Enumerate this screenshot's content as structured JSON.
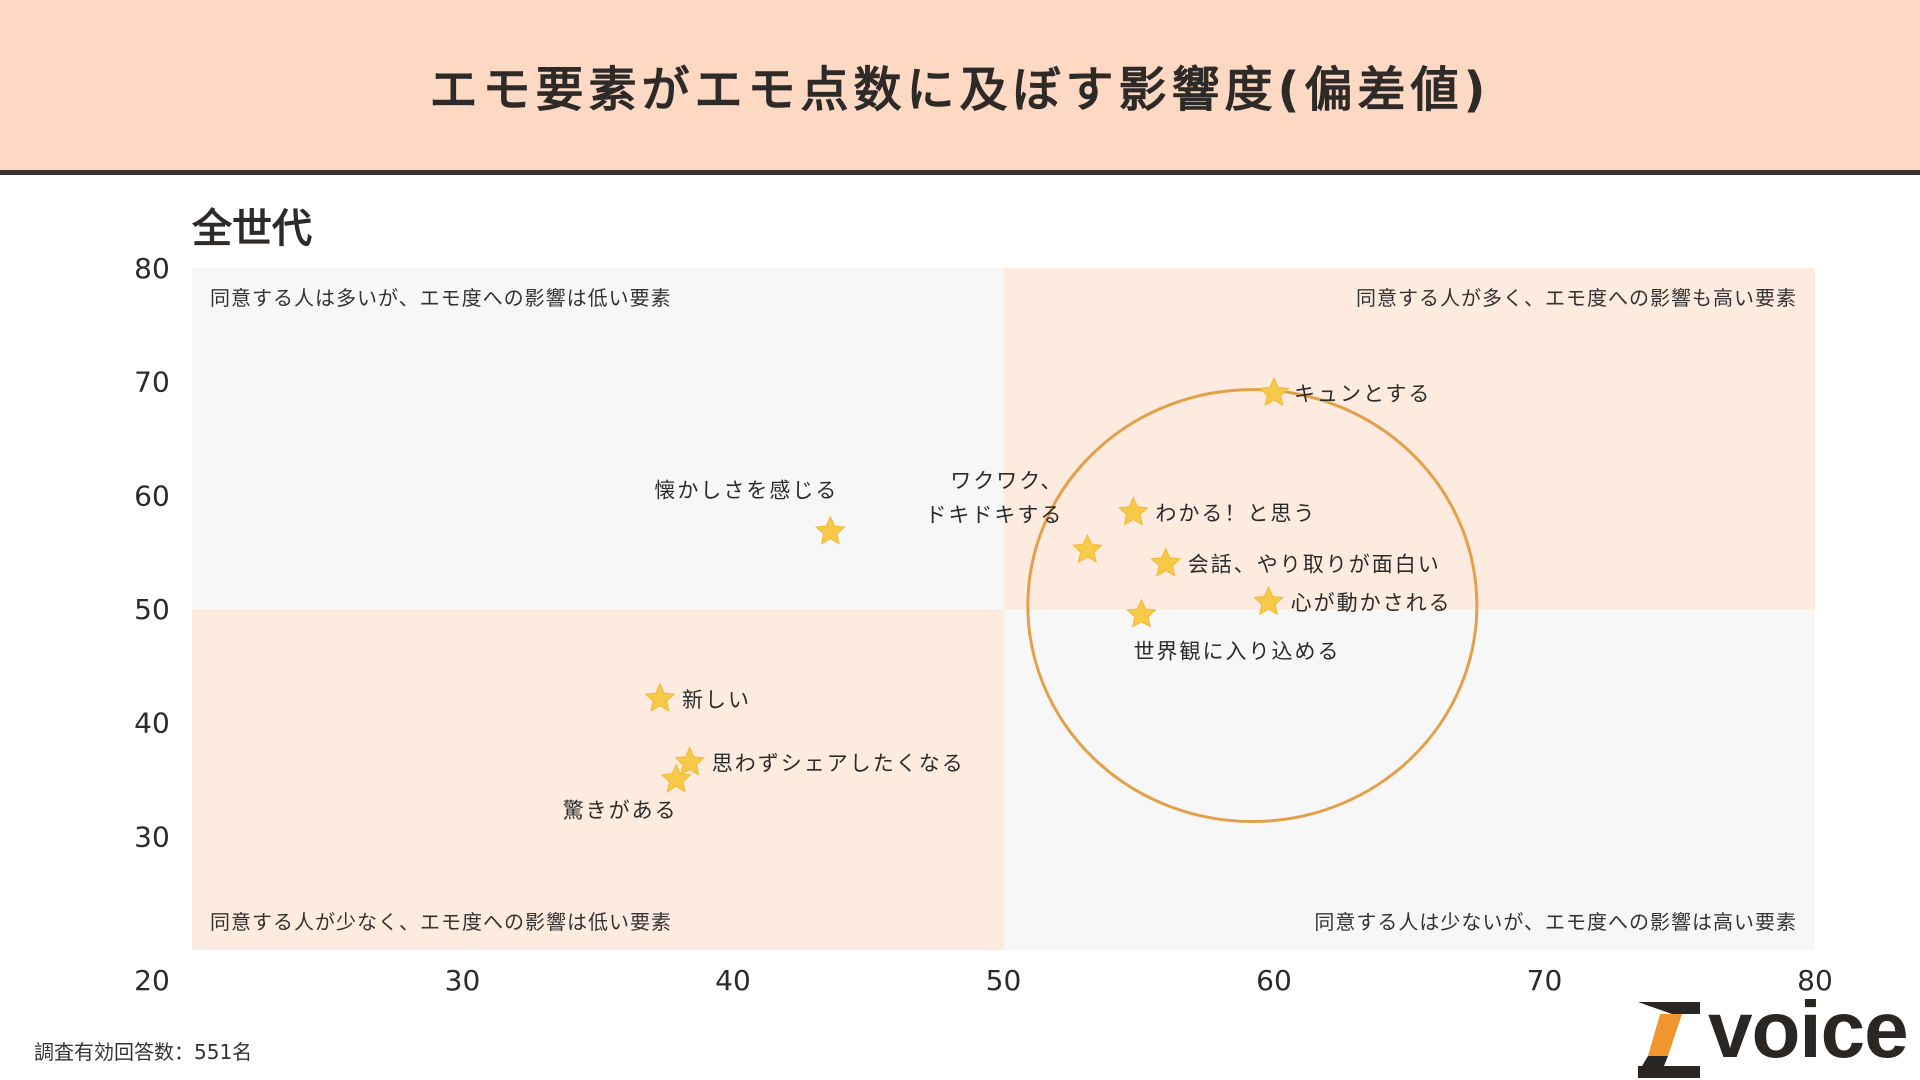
{
  "title": "エモ要素がエモ点数に及ぼす影響度(偏差値)",
  "subtitle": "全世代",
  "footnote": "調査有効回答数：551名",
  "logo": {
    "text": "voice",
    "mark": "Z"
  },
  "colors": {
    "header_bg": "#fdd8c3",
    "quadrant_warm": "#fdebe0",
    "quadrant_gray": "#f7f7f7",
    "star": "#f7c948",
    "circle": "#e3a04a"
  },
  "chart_data": {
    "type": "scatter",
    "xlim": [
      20,
      80
    ],
    "ylim": [
      20,
      80
    ],
    "x_ticks": [
      20,
      30,
      40,
      50,
      60,
      70,
      80
    ],
    "y_ticks": [
      30,
      40,
      50,
      60,
      70,
      80
    ],
    "divider": {
      "x": 50,
      "y": 50
    },
    "quadrants": [
      {
        "label": "同意する人は多いが、エモ度への影響は低い要素",
        "position": "top-left"
      },
      {
        "label": "同意する人が多く、エモ度への影響も高い要素",
        "position": "top-right"
      },
      {
        "label": "同意する人が少なく、エモ度への影響は低い要素",
        "position": "bottom-left"
      },
      {
        "label": "同意する人は少ないが、エモ度への影響は高い要素",
        "position": "bottom-right"
      }
    ],
    "points": [
      {
        "label": "キュンとする",
        "x": 60.0,
        "y": 69.0
      },
      {
        "label": "懐かしさを感じる",
        "x": 43.6,
        "y": 56.8
      },
      {
        "label": "ワクワク、\nドキドキする",
        "x": 53.1,
        "y": 55.2
      },
      {
        "label": "わかる！と思う",
        "x": 54.8,
        "y": 58.5
      },
      {
        "label": "会話、やり取りが面白い",
        "x": 56.0,
        "y": 54.0
      },
      {
        "label": "心が動かされる",
        "x": 59.8,
        "y": 50.6
      },
      {
        "label": "世界観に入り込める",
        "x": 55.1,
        "y": 49.5
      },
      {
        "label": "新しい",
        "x": 37.3,
        "y": 42.1
      },
      {
        "label": "思わずシェアしたくなる",
        "x": 38.4,
        "y": 36.5
      },
      {
        "label": "驚きがある",
        "x": 37.9,
        "y": 35.0
      }
    ],
    "highlight_circle": {
      "cx": 59.2,
      "cy": 50.3,
      "rx": 8.3,
      "ry": 19.0
    }
  }
}
